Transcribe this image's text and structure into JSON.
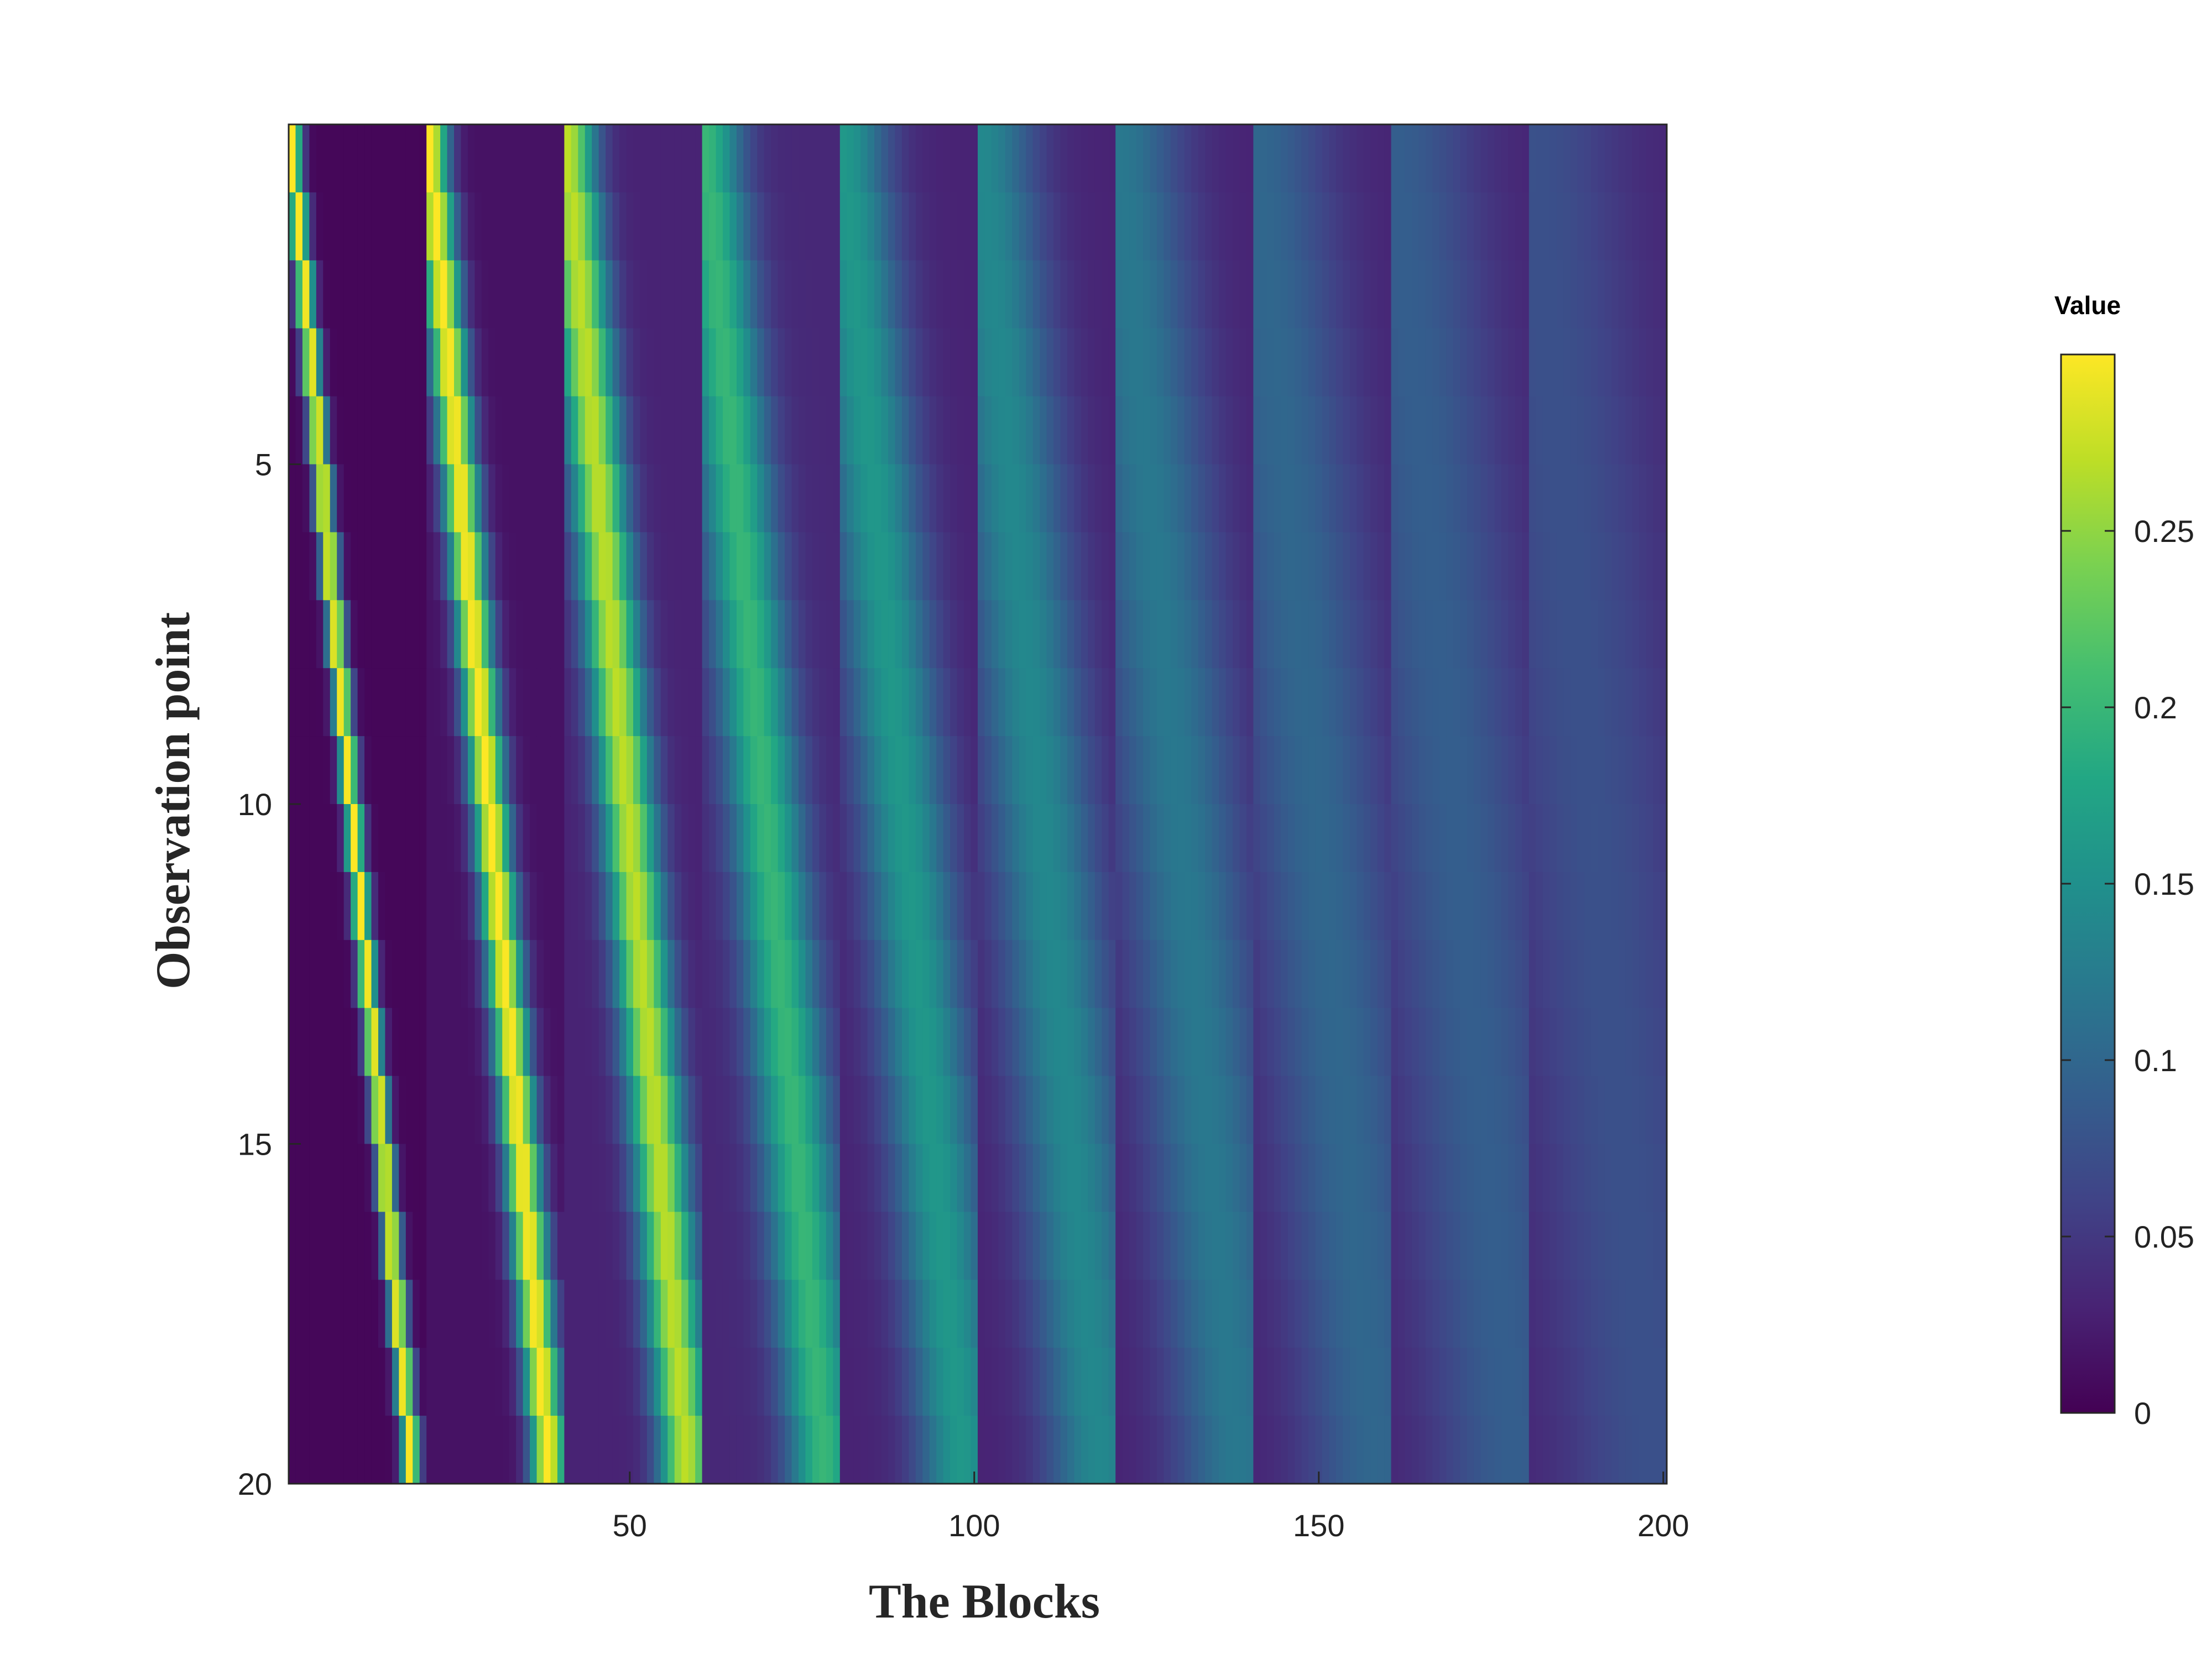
{
  "chart_data": {
    "type": "heatmap",
    "title": "",
    "xlabel": "The Blocks",
    "ylabel": "Observation point",
    "colorbar_label": "Value",
    "colormap": "viridis",
    "x_range": [
      1,
      200
    ],
    "y_range": [
      1,
      20
    ],
    "y_reversed": true,
    "grid": false,
    "x_ticks": [
      50,
      100,
      150,
      200
    ],
    "y_ticks": [
      5,
      10,
      15,
      20
    ],
    "colorbar_range": [
      0,
      0.3
    ],
    "colorbar_ticks": [
      "0",
      "0.05",
      "0.1",
      "0.15",
      "0.2",
      "0.25"
    ],
    "colorbar_tick_values": [
      0,
      0.05,
      0.1,
      0.15,
      0.2,
      0.25
    ],
    "structure": {
      "rows": 20,
      "columns": 200,
      "segment_width": 20,
      "peak_shift_per_row": 0.9,
      "segments": [
        {
          "segment": 1,
          "peak": 0.3,
          "background": 0.005
        },
        {
          "segment": 2,
          "peak": 0.3,
          "background": 0.015
        },
        {
          "segment": 3,
          "peak": 0.27,
          "background": 0.03
        },
        {
          "segment": 4,
          "peak": 0.2,
          "background": 0.035
        },
        {
          "segment": 5,
          "peak": 0.16,
          "background": 0.03
        },
        {
          "segment": 6,
          "peak": 0.14,
          "background": 0.03
        },
        {
          "segment": 7,
          "peak": 0.12,
          "background": 0.03
        },
        {
          "segment": 8,
          "peak": 0.1,
          "background": 0.03
        },
        {
          "segment": 9,
          "peak": 0.09,
          "background": 0.03
        },
        {
          "segment": 10,
          "peak": 0.075,
          "background": 0.03
        }
      ]
    }
  }
}
